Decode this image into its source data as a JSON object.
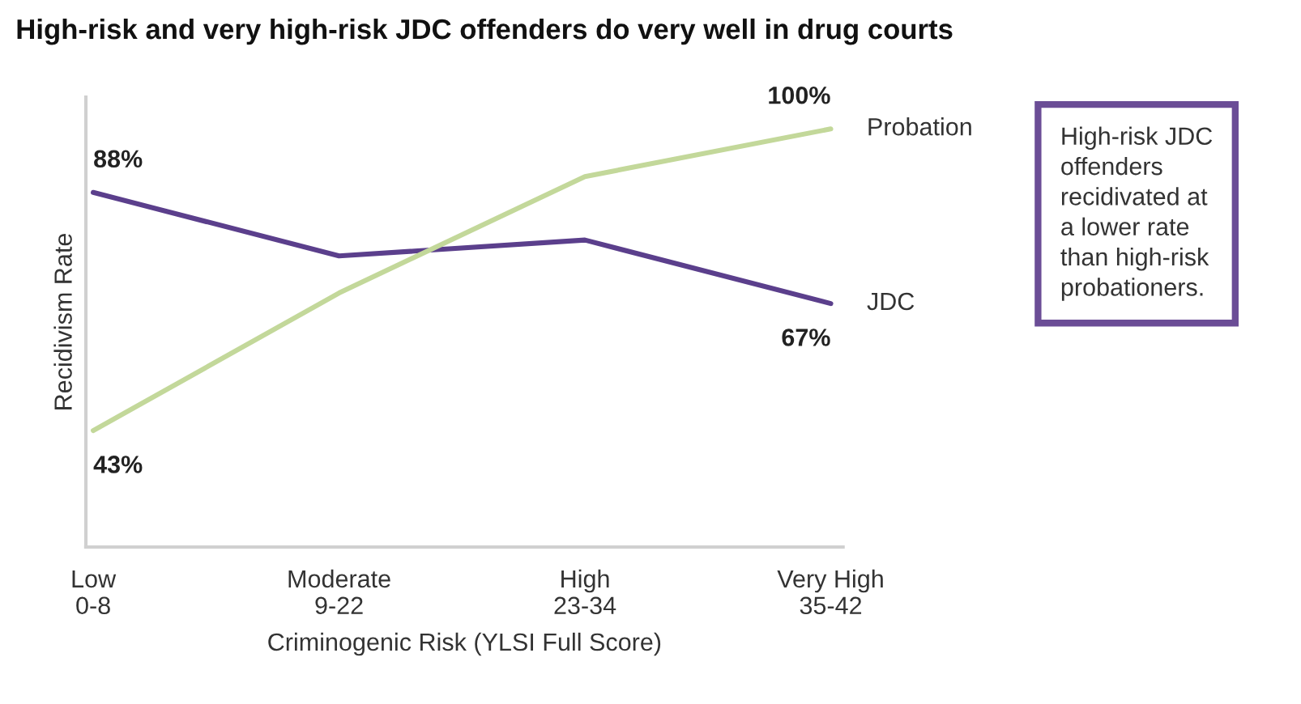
{
  "chart_data": {
    "type": "line",
    "title": "High-risk and very high-risk JDC offenders do very well in drug courts",
    "categories": [
      "Low\n0-8",
      "Moderate\n9-22",
      "High\n23-34",
      "Very High\n35-42"
    ],
    "xlabel": "Criminogenic Risk (YLSI Full Score)",
    "ylabel": "Recidivism Rate",
    "series": [
      {
        "name": "JDC",
        "color": "#5b3f8c",
        "values": [
          88,
          76,
          79,
          67
        ],
        "value_labels": [
          "88%",
          null,
          null,
          "67%"
        ]
      },
      {
        "name": "Probation",
        "color": "#c3d89a",
        "values": [
          43,
          69,
          91,
          100
        ],
        "value_labels": [
          "43%",
          null,
          null,
          "100%"
        ]
      }
    ],
    "ylim": [
      21,
      106
    ],
    "tick_labels": "x",
    "grid": false,
    "legend": false,
    "marker": "none",
    "line_style": "solid",
    "annotations": [
      "High-risk JDC\noffenders\nrecidivated at\na lower rate\nthan high-risk\nprobationers."
    ]
  }
}
